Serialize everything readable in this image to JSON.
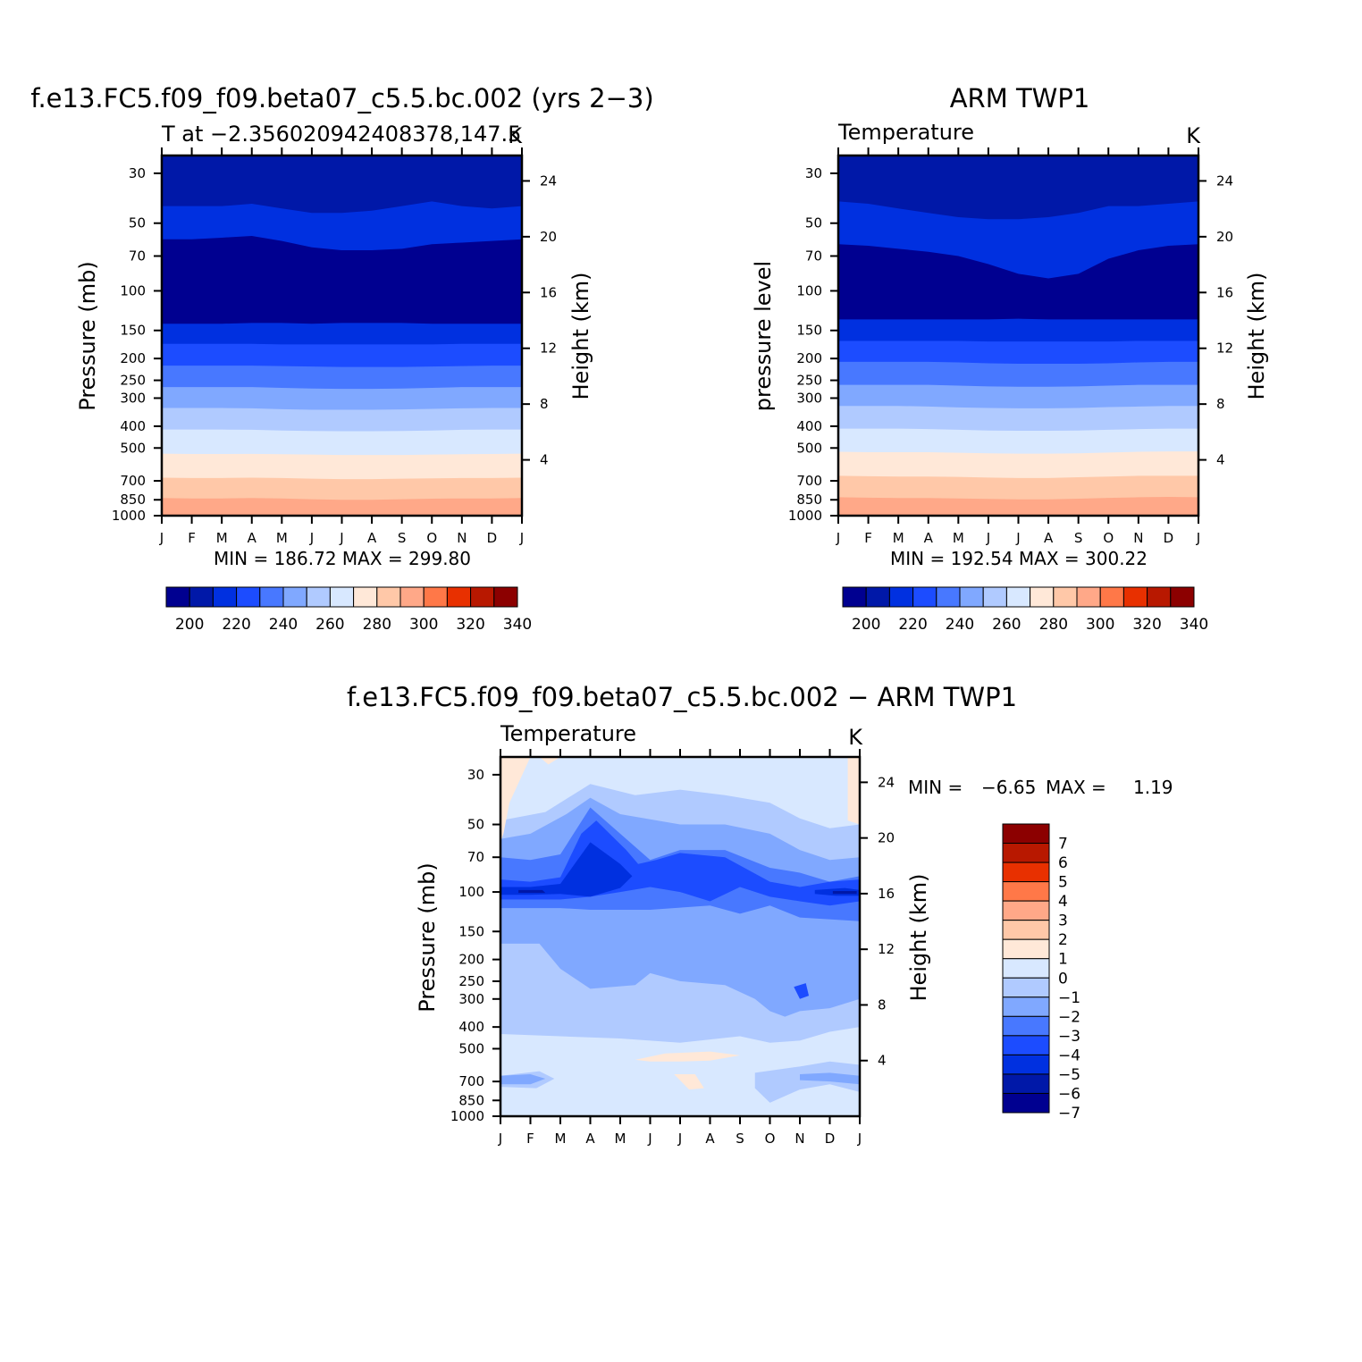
{
  "chart_data": [
    {
      "type": "heatmap",
      "title": "f.e13.FC5.f09_f09.beta07_c5.5.bc.002 (yrs 2−3)",
      "subtitle_left": "T at −2.356020942408378,147.5",
      "units": "K",
      "ylabel": "Pressure (mb)",
      "ylabel_right": "Height (km)",
      "x": [
        "J",
        "F",
        "M",
        "A",
        "M",
        "J",
        "J",
        "A",
        "S",
        "O",
        "N",
        "D",
        "J"
      ],
      "y_ticks": [
        30,
        50,
        70,
        100,
        150,
        200,
        250,
        300,
        400,
        500,
        700,
        850,
        1000
      ],
      "y_right_ticks": [
        24,
        20,
        16,
        12,
        8,
        4
      ],
      "ylim": [
        25,
        1000
      ],
      "stats": "MIN = 186.72 MAX = 299.80",
      "levels": [
        200,
        210,
        220,
        230,
        240,
        250,
        260,
        270,
        280,
        290,
        300,
        310,
        320,
        330,
        340
      ],
      "colorbar_labels": [
        "200",
        "220",
        "240",
        "260",
        "280",
        "300",
        "320",
        "340"
      ],
      "contour_pressure_boundaries_by_month": [
        [
          42,
          42,
          42,
          41,
          43,
          45,
          45,
          44,
          42,
          40,
          42,
          43,
          42
        ],
        [
          59,
          59,
          58,
          57,
          60,
          64,
          66,
          66,
          65,
          62,
          61,
          60,
          59
        ],
        [
          140,
          140,
          140,
          139,
          139,
          140,
          139,
          139,
          139,
          140,
          140,
          140,
          140
        ],
        [
          172,
          172,
          172,
          172,
          173,
          173,
          173,
          173,
          173,
          173,
          172,
          172,
          172
        ],
        [
          215,
          215,
          215,
          215,
          216,
          217,
          218,
          218,
          218,
          217,
          216,
          215,
          215
        ],
        [
          268,
          268,
          268,
          268,
          270,
          272,
          273,
          273,
          272,
          270,
          268,
          268,
          268
        ],
        [
          332,
          332,
          332,
          333,
          336,
          338,
          338,
          338,
          337,
          335,
          333,
          332,
          332
        ],
        [
          414,
          414,
          414,
          415,
          418,
          420,
          421,
          421,
          420,
          418,
          415,
          414,
          414
        ],
        [
          530,
          532,
          532,
          531,
          533,
          535,
          537,
          537,
          537,
          535,
          533,
          532,
          530
        ],
        [
          678,
          680,
          680,
          678,
          680,
          685,
          688,
          688,
          685,
          682,
          680,
          680,
          678
        ],
        [
          835,
          838,
          838,
          835,
          838,
          845,
          850,
          850,
          845,
          840,
          838,
          838,
          835
        ]
      ],
      "contour_fill_levels": [
        205,
        215,
        195,
        215,
        225,
        235,
        245,
        255,
        265,
        275,
        285,
        295
      ]
    },
    {
      "type": "heatmap",
      "title": "ARM TWP1",
      "subtitle_left": "Temperature",
      "units": "K",
      "ylabel": "pressure level",
      "ylabel_right": "Height (km)",
      "x": [
        "J",
        "F",
        "M",
        "A",
        "M",
        "J",
        "J",
        "A",
        "S",
        "O",
        "N",
        "D",
        "J"
      ],
      "y_ticks": [
        30,
        50,
        70,
        100,
        150,
        200,
        250,
        300,
        400,
        500,
        700,
        850,
        1000
      ],
      "y_right_ticks": [
        24,
        20,
        16,
        12,
        8,
        4
      ],
      "ylim": [
        25,
        1000
      ],
      "stats": "MIN = 192.54 MAX = 300.22",
      "levels": [
        200,
        210,
        220,
        230,
        240,
        250,
        260,
        270,
        280,
        290,
        300,
        310,
        320,
        330,
        340
      ],
      "colorbar_labels": [
        "200",
        "220",
        "240",
        "260",
        "280",
        "300",
        "320",
        "340"
      ],
      "contour_pressure_boundaries_by_month": [
        [
          40,
          41,
          43,
          45,
          47,
          48,
          48,
          47,
          45,
          42,
          42,
          41,
          40
        ],
        [
          62,
          63,
          65,
          67,
          70,
          76,
          84,
          88,
          84,
          72,
          66,
          63,
          62
        ],
        [
          134,
          134,
          134,
          134,
          134,
          134,
          133,
          134,
          134,
          134,
          134,
          134,
          134
        ],
        [
          167,
          167,
          167,
          167,
          167,
          168,
          168,
          168,
          168,
          168,
          167,
          167,
          167
        ],
        [
          207,
          207,
          207,
          207,
          208,
          210,
          211,
          211,
          211,
          210,
          208,
          207,
          207
        ],
        [
          262,
          262,
          262,
          262,
          264,
          266,
          267,
          267,
          266,
          264,
          262,
          262,
          262
        ],
        [
          325,
          325,
          325,
          327,
          330,
          332,
          333,
          333,
          332,
          329,
          327,
          325,
          325
        ],
        [
          410,
          410,
          410,
          412,
          415,
          418,
          419,
          419,
          418,
          415,
          412,
          410,
          410
        ],
        [
          520,
          522,
          522,
          522,
          525,
          528,
          530,
          530,
          528,
          524,
          520,
          518,
          518
        ],
        [
          665,
          668,
          670,
          670,
          672,
          677,
          680,
          680,
          675,
          670,
          665,
          665,
          665
        ],
        [
          828,
          832,
          835,
          835,
          838,
          842,
          846,
          846,
          840,
          834,
          828,
          825,
          828
        ]
      ],
      "contour_fill_levels": [
        205,
        215,
        195,
        215,
        225,
        235,
        245,
        255,
        265,
        275,
        285,
        295
      ]
    },
    {
      "type": "heatmap",
      "title": "f.e13.FC5.f09_f09.beta07_c5.5.bc.002 − ARM TWP1",
      "subtitle_left": "Temperature",
      "units": "K",
      "ylabel": "Pressure (mb)",
      "ylabel_right": "Height (km)",
      "x": [
        "J",
        "F",
        "M",
        "A",
        "M",
        "J",
        "J",
        "A",
        "S",
        "O",
        "N",
        "D",
        "J"
      ],
      "y_ticks": [
        30,
        50,
        70,
        100,
        150,
        200,
        250,
        300,
        400,
        500,
        700,
        850,
        1000
      ],
      "y_right_ticks": [
        24,
        20,
        16,
        12,
        8,
        4
      ],
      "ylim": [
        25,
        1000
      ],
      "stats_min_label": "MIN =",
      "stats_min": "−6.65",
      "stats_max_label": "MAX =",
      "stats_max": "1.19",
      "levels": [
        -7,
        -6,
        -5,
        -4,
        -3,
        -2,
        -1,
        0,
        1,
        2,
        3,
        4,
        5,
        6,
        7
      ],
      "colorbar_labels": [
        "7",
        "6",
        "5",
        "4",
        "3",
        "2",
        "1",
        "0",
        "−1",
        "−2",
        "−3",
        "−4",
        "−5",
        "−6",
        "−7"
      ]
    }
  ],
  "colors": {
    "scale": [
      "#000090",
      "#0018A8",
      "#0030E0",
      "#1C4CFF",
      "#4878FF",
      "#80A8FF",
      "#B0CAFF",
      "#D8E8FF",
      "#FFE8D8",
      "#FFC8A8",
      "#FFA888",
      "#FF7848",
      "#E83000",
      "#B81800",
      "#8C0000"
    ]
  }
}
